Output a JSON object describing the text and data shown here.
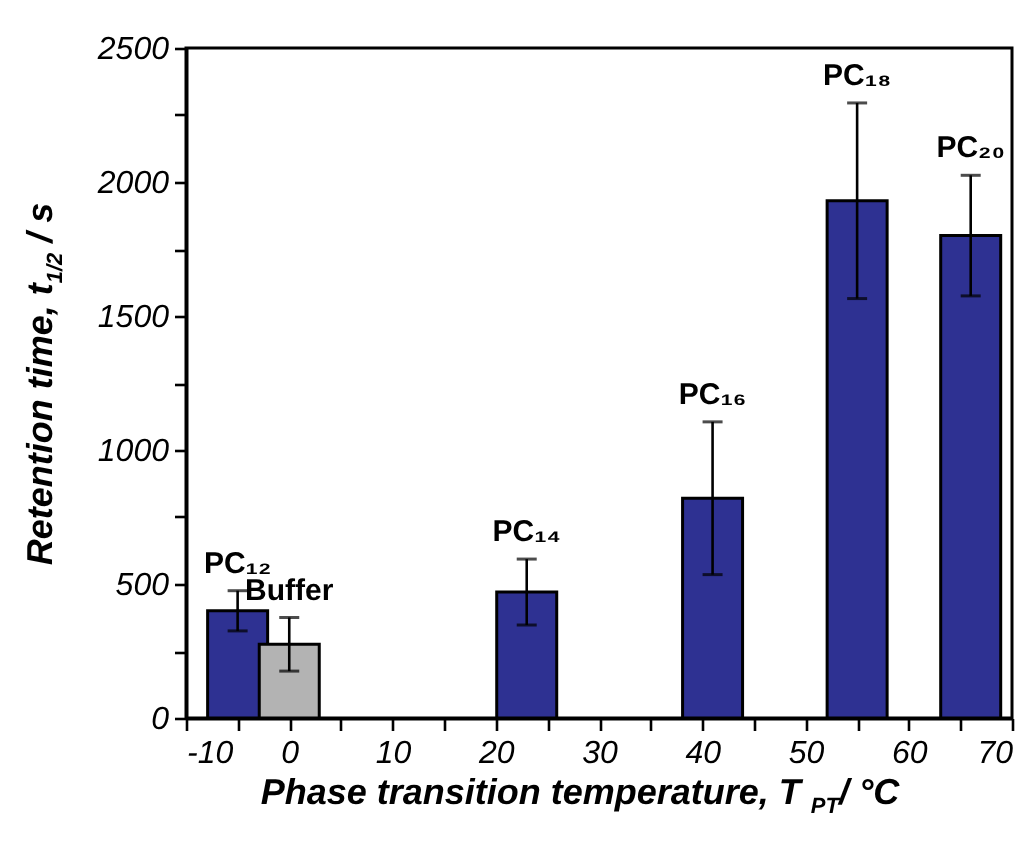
{
  "chart_data": {
    "type": "bar",
    "x": [
      -5,
      0,
      23,
      41,
      55,
      66
    ],
    "values": [
      400,
      275,
      470,
      820,
      1930,
      1800
    ],
    "errors": [
      75,
      100,
      123,
      285,
      365,
      225
    ],
    "colors": [
      "#2e3192",
      "#b3b3b3",
      "#2e3192",
      "#2e3192",
      "#2e3192",
      "#2e3192"
    ],
    "xlim": [
      -10,
      70
    ],
    "xticks": [
      -10,
      {
        "value": -5,
        "label": null
      },
      0,
      {
        "value": 5,
        "label": null
      },
      10,
      {
        "value": 15,
        "label": null
      },
      20,
      {
        "value": 25,
        "label": null
      },
      30,
      {
        "value": 35,
        "label": null
      },
      40,
      {
        "value": 45,
        "label": null
      },
      50,
      {
        "value": 55,
        "label": null
      },
      60,
      {
        "value": 65,
        "label": null
      },
      70
    ],
    "ylim": [
      0,
      2500
    ],
    "yticks": [
      0,
      {
        "value": 250,
        "label": null
      },
      500,
      {
        "value": 750,
        "label": null
      },
      1000,
      {
        "value": 1250,
        "label": null
      },
      1500,
      {
        "value": 1750,
        "label": null
      },
      2000,
      {
        "value": 2250,
        "label": null
      },
      2500
    ],
    "xlabel": "Phase transition temperature, T $_{PT}$/ °C",
    "ylabel": "Retention time, t$_{1/2}$ / s",
    "annotations": [
      {
        "text": "PC₁₂",
        "x": -5,
        "y": 475
      },
      {
        "text": "Buffer",
        "x": 0,
        "y": 375
      },
      {
        "text": "PC₁₄",
        "x": 23,
        "y": 593
      },
      {
        "text": "PC₁₆",
        "x": 41,
        "y": 1105
      },
      {
        "text": "PC₁₈",
        "x": 55,
        "y": 2295
      },
      {
        "text": "PC₂₀",
        "x": 66,
        "y": 2025
      }
    ]
  }
}
